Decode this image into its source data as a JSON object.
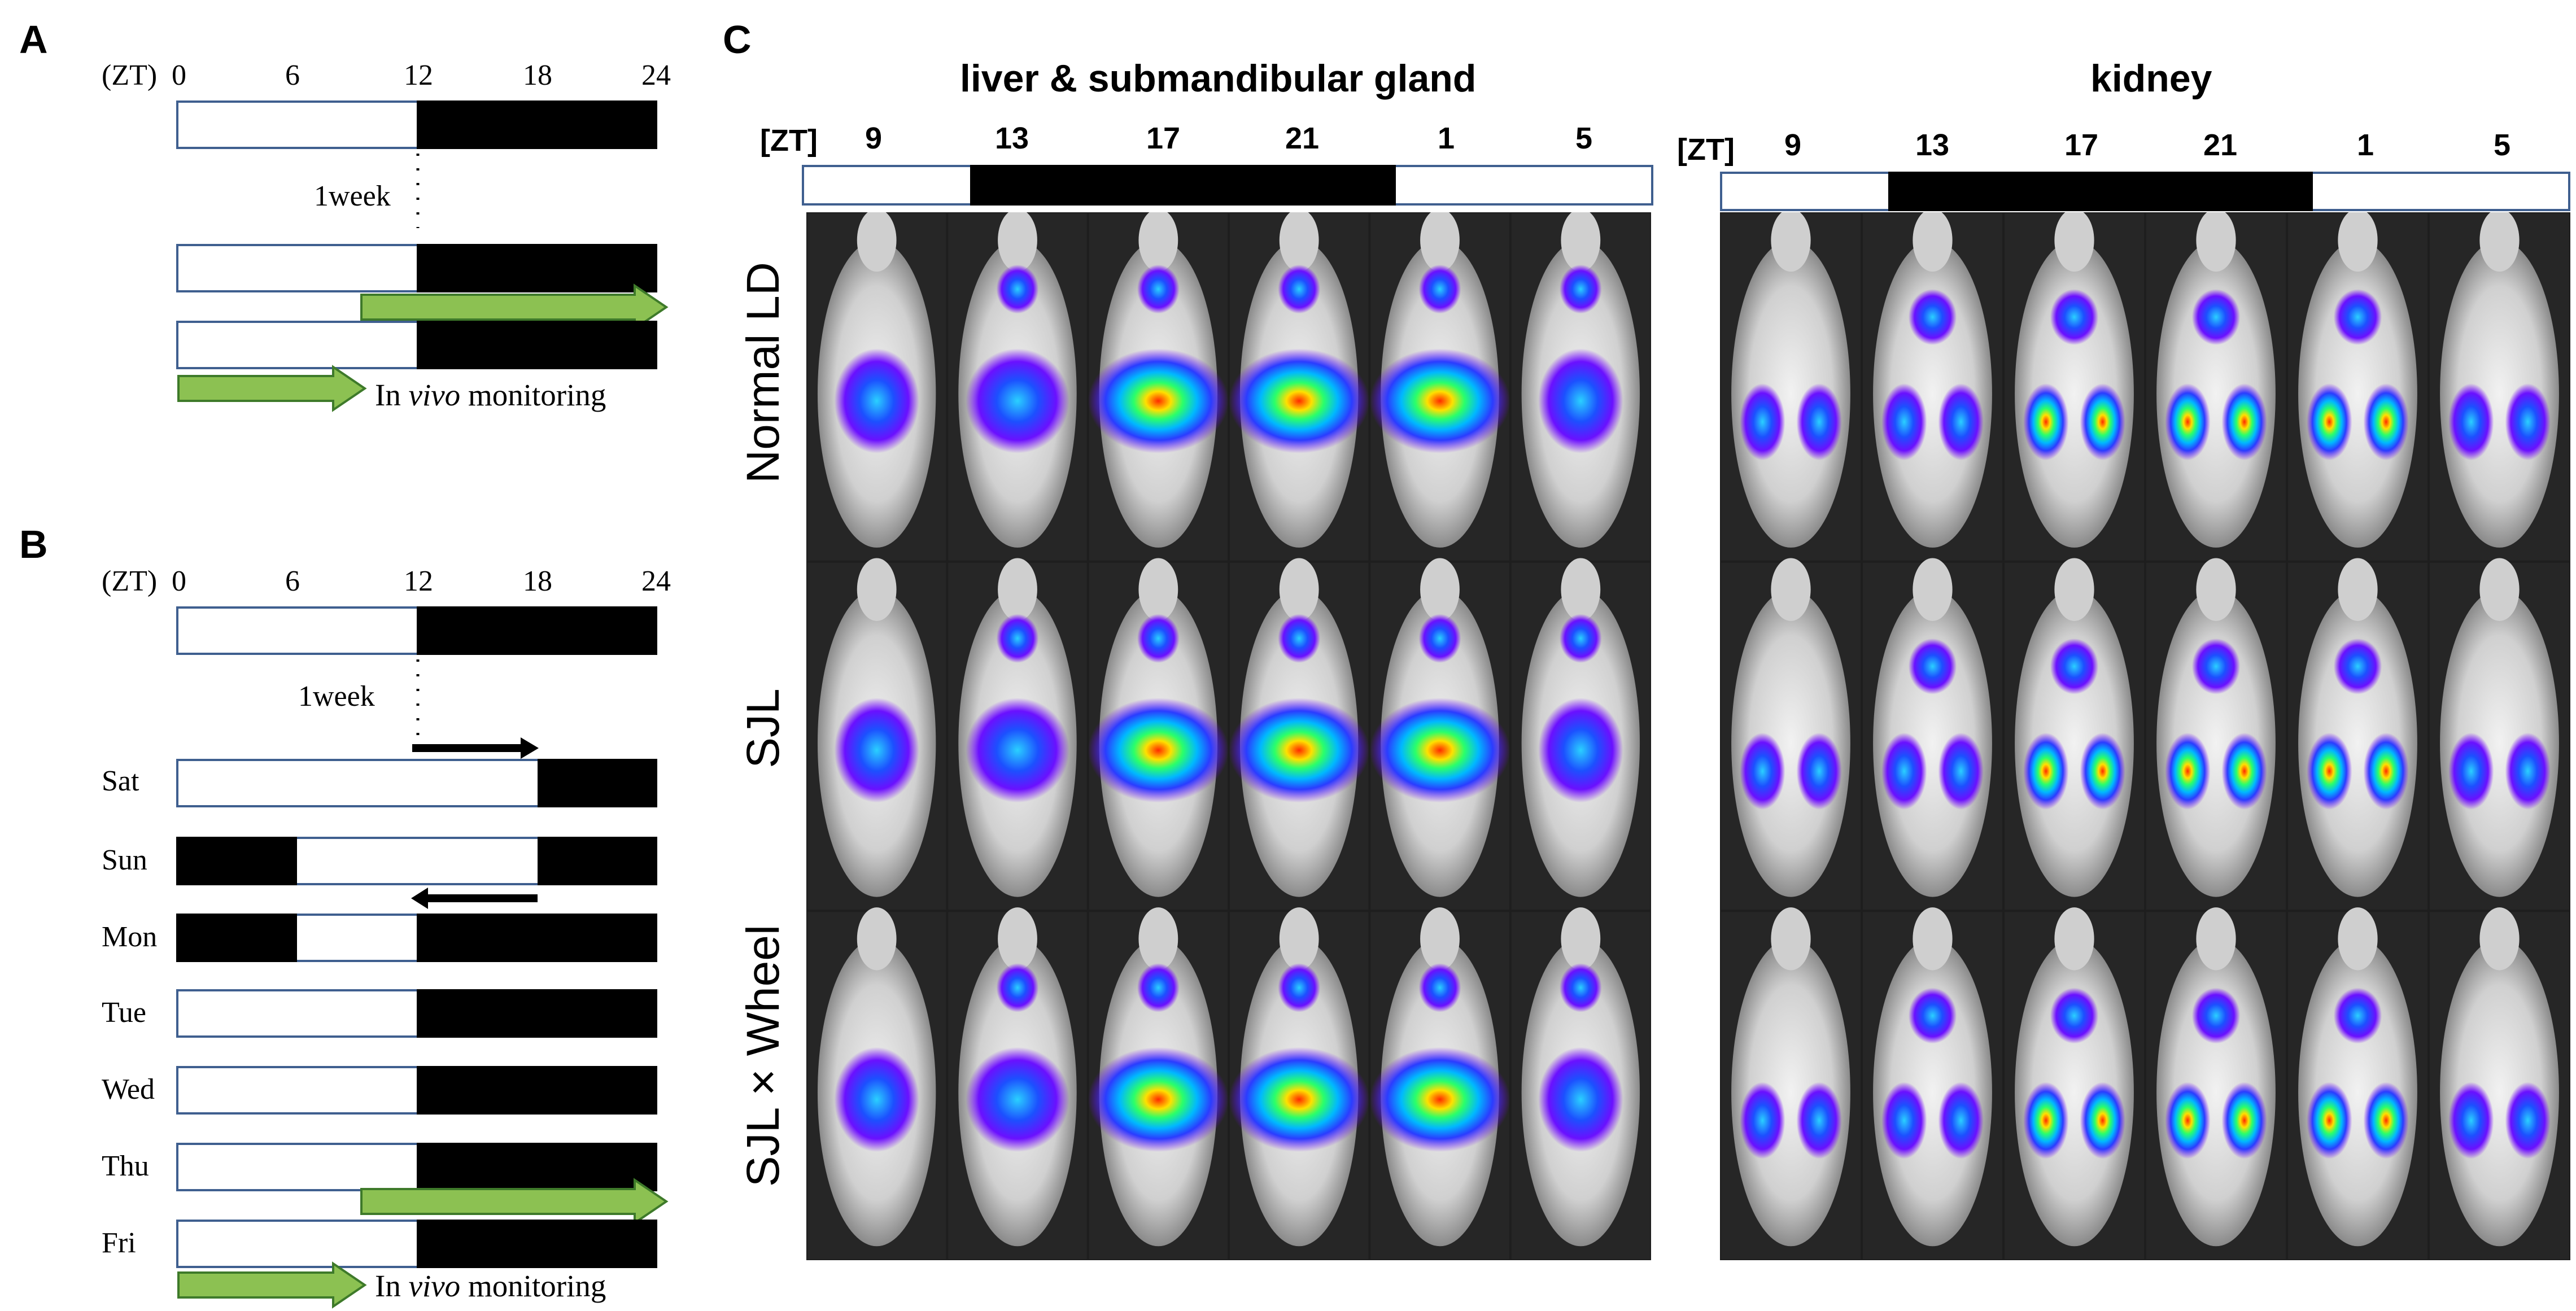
{
  "panel_a": {
    "letter": "A",
    "zt_prefix": "(ZT)",
    "ticks": [
      "0",
      "6",
      "12",
      "18",
      "24"
    ],
    "interval_label": "1week",
    "caption_pre": "In ",
    "caption_italic": "vivo",
    "caption_post": " monitoring"
  },
  "panel_b": {
    "letter": "B",
    "zt_prefix": "(ZT)",
    "ticks": [
      "0",
      "6",
      "12",
      "18",
      "24"
    ],
    "interval_label": "1week",
    "days": [
      "Sat",
      "Sun",
      "Mon",
      "Tue",
      "Wed",
      "Thu",
      "Fri"
    ],
    "caption_pre": "In ",
    "caption_italic": "vivo",
    "caption_post": " monitoring"
  },
  "panel_c": {
    "letter": "C",
    "left_title": "liver & submandibular gland",
    "right_title": "kidney",
    "zt_label": "[ZT]",
    "time_points": [
      "9",
      "13",
      "17",
      "21",
      "1",
      "5"
    ],
    "row_labels": [
      "Normal LD",
      "SJL",
      "SJL × Wheel"
    ]
  },
  "colors": {
    "bar_border": "#3f5f8f",
    "dark_phase": "#000000",
    "arrow_green": "#8cc152",
    "arrow_green_border": "#3e7a2a"
  },
  "icons": [
    "green-right-arrow-icon",
    "black-right-arrow-icon",
    "black-left-arrow-icon",
    "mouse-bioluminescence-image"
  ]
}
